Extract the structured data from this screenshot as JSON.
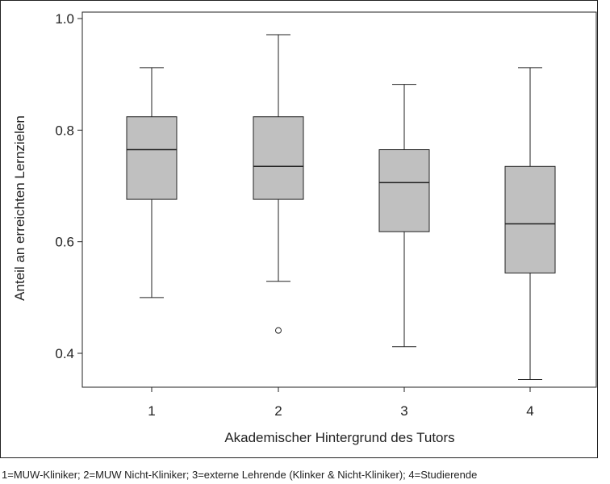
{
  "chart_data": {
    "type": "boxplot",
    "xlabel": "Akademischer Hintergrund des Tutors",
    "ylabel": "Anteil an erreichten Lernzielen",
    "ylim": [
      0.335,
      1.0
    ],
    "yticks": [
      0.4,
      0.6,
      0.8,
      1.0
    ],
    "ytick_labels": [
      "0.4",
      "0.6",
      "0.8",
      "1.0"
    ],
    "categories": [
      "1",
      "2",
      "3",
      "4"
    ],
    "grid": false,
    "box_fill": "#c0c0c0",
    "line_color": "#222222",
    "boxes": [
      {
        "category": "1",
        "whisker_low": 0.5,
        "q1": 0.676,
        "median": 0.765,
        "q3": 0.824,
        "whisker_high": 0.912,
        "outliers": []
      },
      {
        "category": "2",
        "whisker_low": 0.529,
        "q1": 0.676,
        "median": 0.735,
        "q3": 0.824,
        "whisker_high": 0.971,
        "outliers": [
          0.441
        ]
      },
      {
        "category": "3",
        "whisker_low": 0.412,
        "q1": 0.618,
        "median": 0.706,
        "q3": 0.765,
        "whisker_high": 0.882,
        "outliers": []
      },
      {
        "category": "4",
        "whisker_low": 0.353,
        "q1": 0.544,
        "median": 0.632,
        "q3": 0.735,
        "whisker_high": 0.912,
        "outliers": []
      }
    ]
  },
  "caption": "1=MUW-Kliniker; 2=MUW Nicht-Kliniker; 3=externe Lehrende (Klinker & Nicht-Kliniker); 4=Studierende"
}
